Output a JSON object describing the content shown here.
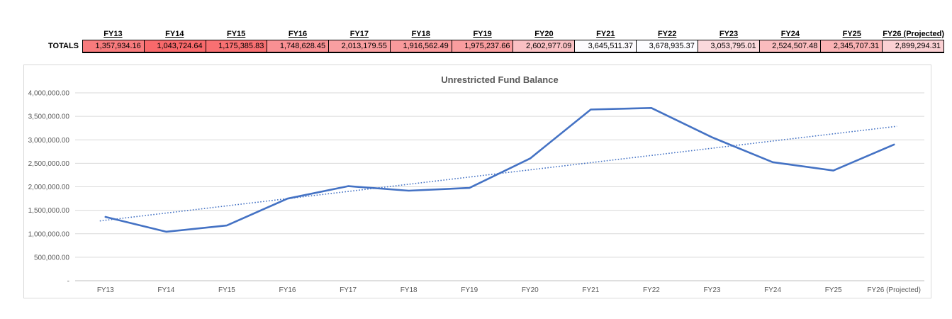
{
  "table": {
    "row_label": "TOTALS",
    "columns": [
      {
        "header": "FY13",
        "value": "1,357,934.16",
        "bg": "#F87B7D"
      },
      {
        "header": "FY14",
        "value": "1,043,724.64",
        "bg": "#F8696B"
      },
      {
        "header": "FY15",
        "value": "1,175,385.83",
        "bg": "#F87072"
      },
      {
        "header": "FY16",
        "value": "1,748,628.45",
        "bg": "#F99093"
      },
      {
        "header": "FY17",
        "value": "2,013,179.55",
        "bg": "#F99FA1"
      },
      {
        "header": "FY18",
        "value": "1,916,562.49",
        "bg": "#F99A9C"
      },
      {
        "header": "FY19",
        "value": "1,975,237.66",
        "bg": "#F99D9F"
      },
      {
        "header": "FY20",
        "value": "2,602,977.09",
        "bg": "#FAC0C3"
      },
      {
        "header": "FY21",
        "value": "3,645,511.37",
        "bg": "#FCFAFD"
      },
      {
        "header": "FY22",
        "value": "3,678,935.37",
        "bg": "#FCFCFF"
      },
      {
        "header": "FY23",
        "value": "3,053,795.01",
        "bg": "#FBD9DC"
      },
      {
        "header": "FY24",
        "value": "2,524,507.48",
        "bg": "#FABCBE"
      },
      {
        "header": "FY25",
        "value": "2,345,707.31",
        "bg": "#FAB2B4"
      },
      {
        "header": "FY26 (Projected)",
        "value": "2,899,294.31",
        "bg": "#FBD0D3"
      }
    ]
  },
  "chart_data": {
    "type": "line",
    "title": "Unrestricted Fund Balance",
    "categories": [
      "FY13",
      "FY14",
      "FY15",
      "FY16",
      "FY17",
      "FY18",
      "FY19",
      "FY20",
      "FY21",
      "FY22",
      "FY23",
      "FY24",
      "FY25",
      "FY26 (Projected)"
    ],
    "series": [
      {
        "name": "Unrestricted Fund Balance",
        "values": [
          1357934.16,
          1043724.64,
          1175385.83,
          1748628.45,
          2013179.55,
          1916562.49,
          1975237.66,
          2602977.09,
          3645511.37,
          3678935.37,
          3053795.01,
          2524507.48,
          2345707.31,
          2899294.31
        ]
      }
    ],
    "trendline": {
      "type": "linear",
      "style": "dotted"
    },
    "ylim": [
      0,
      4000000
    ],
    "y_tick_interval": 500000,
    "y_tick_labels": [
      "-",
      "500,000.00",
      "1,000,000.00",
      "1,500,000.00",
      "2,000,000.00",
      "2,500,000.00",
      "3,000,000.00",
      "3,500,000.00",
      "4,000,000.00"
    ],
    "grid": true,
    "legend": "none",
    "line_color": "#4472C4",
    "trendline_color": "#4472C4",
    "gridline_color": "#D9D9D9",
    "axisline_color": "#BFBFBF",
    "label_color": "#595959",
    "title_color": "#595959"
  }
}
